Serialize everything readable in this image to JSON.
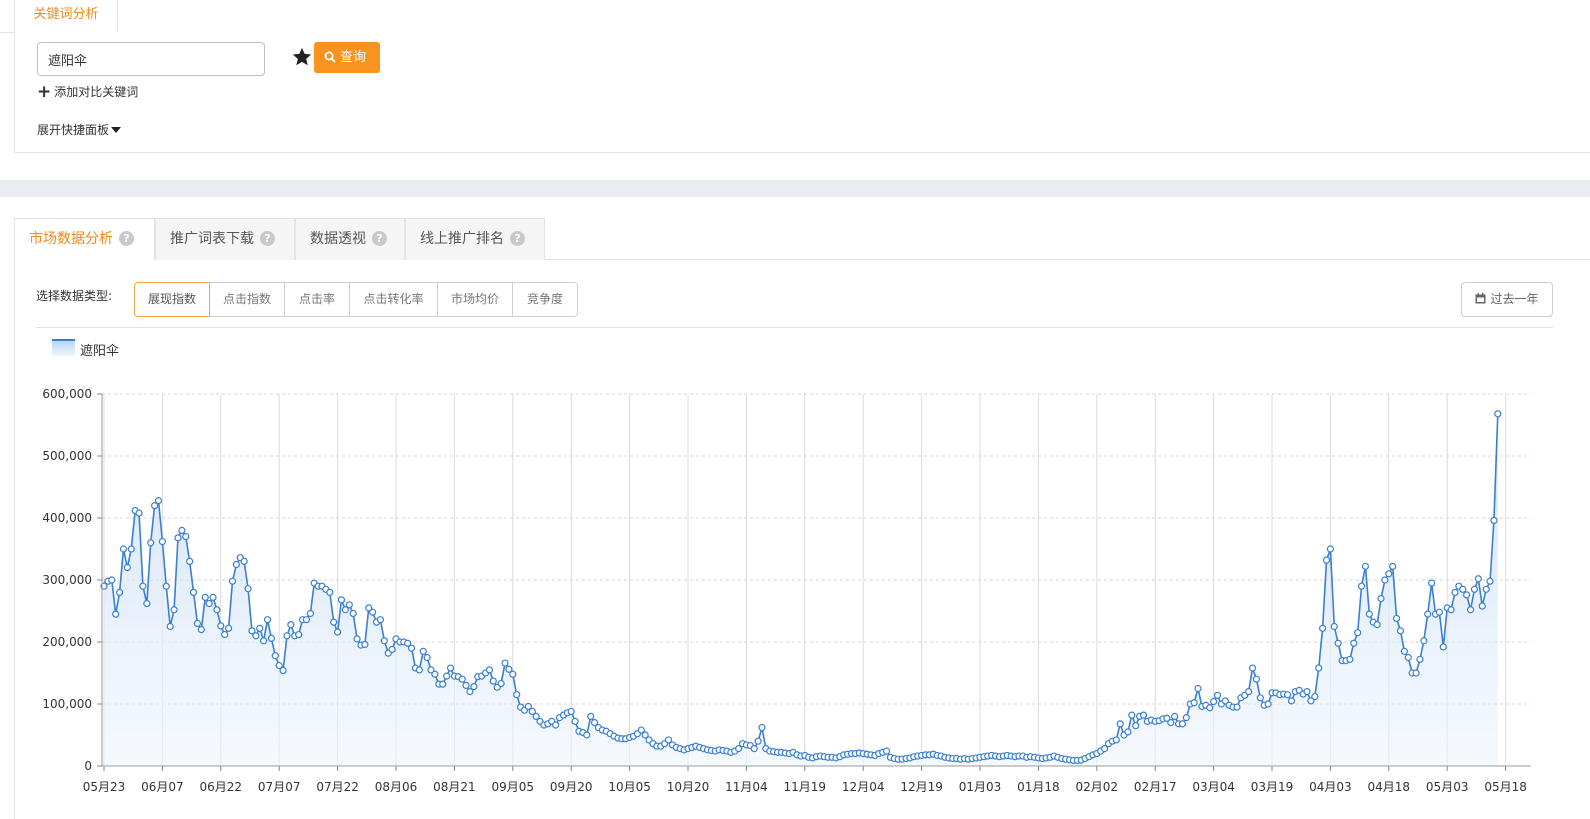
{
  "keyword_section": {
    "tab_label": "关键词分析",
    "search_value": "遮阳伞",
    "query_button": "查询",
    "add_compare": "添加对比关键词",
    "expand_panel": "展开快捷面板"
  },
  "market_tabs": [
    {
      "label": "市场数据分析",
      "help": "?"
    },
    {
      "label": "推广词表下载",
      "help": "?"
    },
    {
      "label": "数据透视",
      "help": "?"
    },
    {
      "label": "线上推广排名",
      "help": "?"
    }
  ],
  "data_type": {
    "label": "选择数据类型:",
    "options": [
      "展现指数",
      "点击指数",
      "点击率",
      "点击转化率",
      "市场均价",
      "竞争度"
    ],
    "selected": "展现指数"
  },
  "range_button": "过去一年",
  "colors": {
    "accent": "#f7931e",
    "series": "#3a7fd0"
  },
  "chart_data": {
    "type": "area",
    "legend": [
      "遮阳伞"
    ],
    "legend_position": "top-left",
    "grid": true,
    "ylim": [
      0,
      600000
    ],
    "y_ticks": [
      "0",
      "100,000",
      "200,000",
      "300,000",
      "400,000",
      "500,000",
      "600,000"
    ],
    "x_ticks": [
      "05月23",
      "06月07",
      "06月22",
      "07月07",
      "07月22",
      "08月06",
      "08月21",
      "09月05",
      "09月20",
      "10月05",
      "10月20",
      "11月04",
      "11月19",
      "12月04",
      "12月19",
      "01月03",
      "01月18",
      "02月02",
      "02月17",
      "03月04",
      "03月19",
      "04月03",
      "04月18",
      "05月03",
      "05月18"
    ],
    "series": [
      {
        "name": "遮阳伞",
        "values": [
          290000,
          298000,
          300000,
          245000,
          280000,
          350000,
          320000,
          350000,
          412000,
          408000,
          290000,
          262000,
          360000,
          420000,
          428000,
          362000,
          290000,
          225000,
          252000,
          368000,
          380000,
          370000,
          330000,
          280000,
          230000,
          220000,
          272000,
          262000,
          272000,
          252000,
          226000,
          212000,
          222000,
          298000,
          325000,
          336000,
          330000,
          286000,
          218000,
          210000,
          222000,
          202000,
          236000,
          206000,
          178000,
          162000,
          154000,
          210000,
          228000,
          210000,
          212000,
          236000,
          236000,
          246000,
          295000,
          290000,
          290000,
          285000,
          280000,
          232000,
          216000,
          268000,
          252000,
          260000,
          246000,
          205000,
          195000,
          196000,
          255000,
          248000,
          232000,
          236000,
          202000,
          182000,
          188000,
          205000,
          200000,
          200000,
          198000,
          190000,
          158000,
          155000,
          185000,
          175000,
          155000,
          148000,
          132000,
          132000,
          145000,
          158000,
          145000,
          144000,
          140000,
          130000,
          120000,
          128000,
          144000,
          145000,
          150000,
          155000,
          137000,
          127000,
          133000,
          166000,
          156000,
          148000,
          115000,
          95000,
          90000,
          96000,
          88000,
          80000,
          72000,
          66000,
          68000,
          72000,
          66000,
          78000,
          82000,
          86000,
          88000,
          72000,
          56000,
          54000,
          50000,
          80000,
          70000,
          62000,
          58000,
          56000,
          52000,
          48000,
          45000,
          44000,
          44000,
          46000,
          48000,
          52000,
          58000,
          50000,
          42000,
          36000,
          32000,
          32000,
          36000,
          42000,
          34000,
          30000,
          28000,
          26000,
          28000,
          30000,
          32000,
          30000,
          28000,
          26000,
          25000,
          24000,
          26000,
          25000,
          24000,
          22000,
          24000,
          28000,
          36000,
          34000,
          33000,
          28000,
          40000,
          62000,
          28000,
          24000,
          23000,
          22000,
          22000,
          21000,
          20000,
          22000,
          18000,
          16000,
          17000,
          14000,
          13000,
          15000,
          16000,
          15000,
          14000,
          14000,
          13000,
          15000,
          18000,
          19000,
          20000,
          20000,
          21000,
          20000,
          19000,
          18000,
          17000,
          20000,
          22000,
          24000,
          14000,
          12000,
          11000,
          11000,
          12000,
          13000,
          15000,
          16000,
          17000,
          18000,
          18000,
          19000,
          17000,
          16000,
          14000,
          13000,
          12000,
          12000,
          11000,
          12000,
          11000,
          12000,
          13000,
          14000,
          15000,
          16000,
          17000,
          16000,
          15000,
          16000,
          17000,
          16000,
          15000,
          16000,
          16000,
          14000,
          15000,
          14000,
          13000,
          12000,
          13000,
          14000,
          16000,
          14000,
          12000,
          11000,
          10000,
          9000,
          9000,
          9500,
          12000,
          15000,
          18000,
          20000,
          24000,
          28000,
          36000,
          40000,
          42000,
          68000,
          50000,
          55000,
          82000,
          65000,
          80000,
          82000,
          72000,
          74000,
          72000,
          73000,
          76000,
          77000,
          70000,
          80000,
          68000,
          68000,
          78000,
          100000,
          102000,
          125000,
          96000,
          98000,
          94000,
          104000,
          114000,
          100000,
          105000,
          98000,
          95000,
          95000,
          110000,
          114000,
          120000,
          158000,
          140000,
          110000,
          98000,
          100000,
          118000,
          118000,
          115000,
          116000,
          115000,
          105000,
          120000,
          122000,
          116000,
          120000,
          105000,
          112000,
          158000,
          222000,
          332000,
          350000,
          225000,
          198000,
          170000,
          170000,
          172000,
          198000,
          215000,
          290000,
          322000,
          245000,
          232000,
          228000,
          270000,
          300000,
          310000,
          322000,
          238000,
          218000,
          185000,
          175000,
          150000,
          150000,
          172000,
          202000,
          245000,
          295000,
          245000,
          248000,
          192000,
          255000,
          252000,
          280000,
          290000,
          285000,
          276000,
          252000,
          285000,
          302000,
          258000,
          285000,
          298000,
          396000,
          568000
        ]
      }
    ]
  }
}
